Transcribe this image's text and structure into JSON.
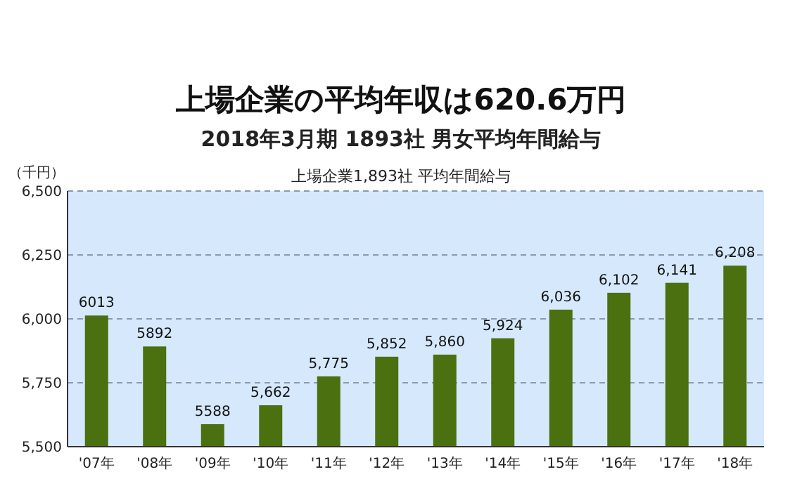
{
  "chart_data": {
    "type": "bar",
    "title": "上場企業の平均年収は620.6万円",
    "subtitle": "2018年3月期  1893社 男女平均年間給与",
    "ylabel": "（千円）",
    "annotations": [
      "上場企業1,893社 平均年間給与"
    ],
    "categories": [
      "'07年",
      "'08年",
      "'09年",
      "'10年",
      "'11年",
      "'12年",
      "'13年",
      "'14年",
      "'15年",
      "'16年",
      "'17年",
      "'18年"
    ],
    "values": [
      6013,
      5892,
      5588,
      5662,
      5775,
      5852,
      5860,
      5924,
      6036,
      6102,
      6141,
      6208
    ],
    "value_labels": [
      "6013",
      "5892",
      "5588",
      "5,662",
      "5,775",
      "5,852",
      "5,860",
      "5,924",
      "6,036",
      "6,102",
      "6,141",
      "6,208"
    ],
    "color": "#4a7010",
    "ylim": [
      5500,
      6500
    ],
    "yticks": [
      {
        "value": 5500,
        "label": "5,500"
      },
      {
        "value": 5750,
        "label": "5,750"
      },
      {
        "value": 6000,
        "label": "6,000"
      },
      {
        "value": 6250,
        "label": "6,250"
      },
      {
        "value": 6500,
        "label": "6,500"
      }
    ],
    "grid": "y"
  }
}
